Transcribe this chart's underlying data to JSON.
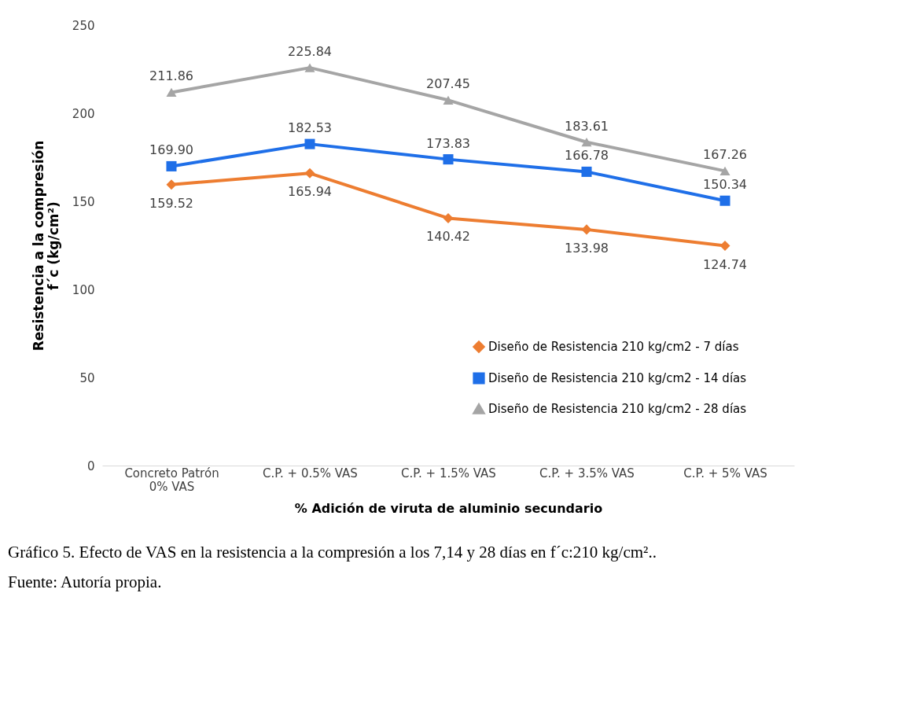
{
  "chart_data": {
    "type": "line",
    "xlabel": "% Adición de viruta de aluminio secundario",
    "ylabel": "Resistencia a la compresión\nf´c (kg/cm²)",
    "categories": [
      "Concreto Patrón\n0% VAS",
      "C.P. + 0.5% VAS",
      "C.P. + 1.5% VAS",
      "C.P. + 3.5% VAS",
      "C.P. + 5% VAS"
    ],
    "series": [
      {
        "name": "Diseño de Resistencia 210 kg/cm2 - 7 días",
        "color": "#ed7d31",
        "marker": "diamond",
        "values": [
          159.52,
          165.94,
          140.42,
          133.98,
          124.74
        ],
        "value_labels": [
          "159.52",
          "165.94",
          "140.42",
          "133.98",
          "124.74"
        ]
      },
      {
        "name": "Diseño de Resistencia 210 kg/cm2 - 14 días",
        "color": "#1f6fe8",
        "marker": "square",
        "values": [
          169.9,
          182.53,
          173.83,
          166.78,
          150.34
        ],
        "value_labels": [
          "169.90",
          "182.53",
          "173.83",
          "166.78",
          "150.34"
        ]
      },
      {
        "name": "Diseño de Resistencia 210 kg/cm2 - 28 días",
        "color": "#a5a5a5",
        "marker": "triangle",
        "values": [
          211.86,
          225.84,
          207.45,
          183.61,
          167.26
        ],
        "value_labels": [
          "211.86",
          "225.84",
          "207.45",
          "183.61",
          "167.26"
        ]
      }
    ],
    "ylim": [
      0,
      250
    ],
    "yticks": [
      0,
      50,
      100,
      150,
      200,
      250
    ],
    "grid": false,
    "legend": "bottom right",
    "line_style": "solid",
    "annotations": [
      "Gráfico 5. Efecto de VAS en la resistencia a la compresión a los 7,14 y 28 días en f´c:210 kg/cm²..",
      "Fuente: Autoría propia."
    ]
  }
}
